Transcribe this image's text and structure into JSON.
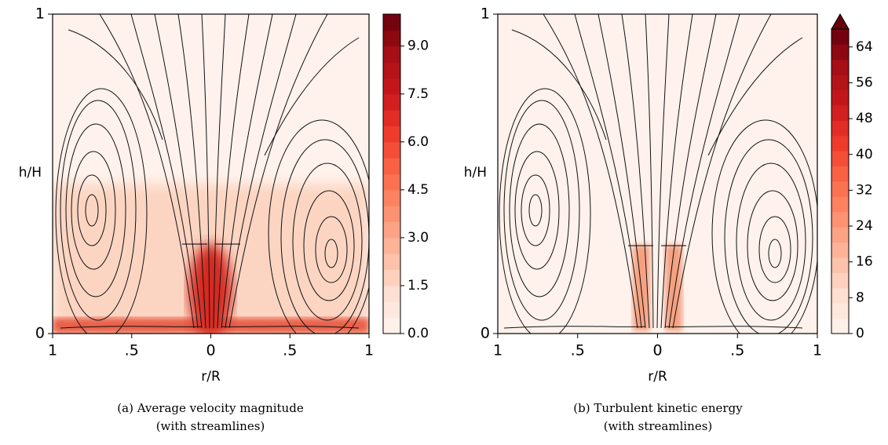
{
  "chart_data": [
    {
      "type": "contour",
      "colormap": "Reds",
      "xlabel": "r/R",
      "ylabel": "h/H",
      "xlim": [
        -1,
        1
      ],
      "ylim": [
        0,
        1
      ],
      "xticks": [
        {
          "value": -1,
          "label": "1"
        },
        {
          "value": -0.5,
          "label": ".5"
        },
        0,
        {
          "value": 0.5,
          "label": ".5"
        },
        1
      ],
      "yticks": [
        0,
        1
      ],
      "colorbar": {
        "lim": [
          0,
          10
        ],
        "ticks": [
          {
            "value": 0,
            "label": "0.0"
          },
          1.5,
          {
            "value": 3,
            "label": "3.0"
          },
          4.5,
          {
            "value": 6,
            "label": "6.0"
          },
          7.5,
          {
            "value": 9,
            "label": "9.0"
          }
        ]
      },
      "caption": [
        "(a) Average velocity magnitude",
        "(with streamlines)"
      ]
    },
    {
      "type": "contour",
      "colormap": "Reds",
      "xlabel": "r/R",
      "ylabel": "h/H",
      "xlim": [
        -1,
        1
      ],
      "ylim": [
        0,
        1
      ],
      "xticks": [
        {
          "value": -1,
          "label": "1"
        },
        {
          "value": -0.5,
          "label": ".5"
        },
        0,
        {
          "value": 0.5,
          "label": ".5"
        },
        1
      ],
      "yticks": [
        0,
        1
      ],
      "colorbar": {
        "lim": [
          0,
          68
        ],
        "extend": "max",
        "ticks": [
          0,
          8,
          16,
          24,
          32,
          40,
          48,
          56,
          64
        ]
      },
      "caption": [
        "(b) Turbulent kinetic energy",
        "(with streamlines)"
      ]
    }
  ]
}
